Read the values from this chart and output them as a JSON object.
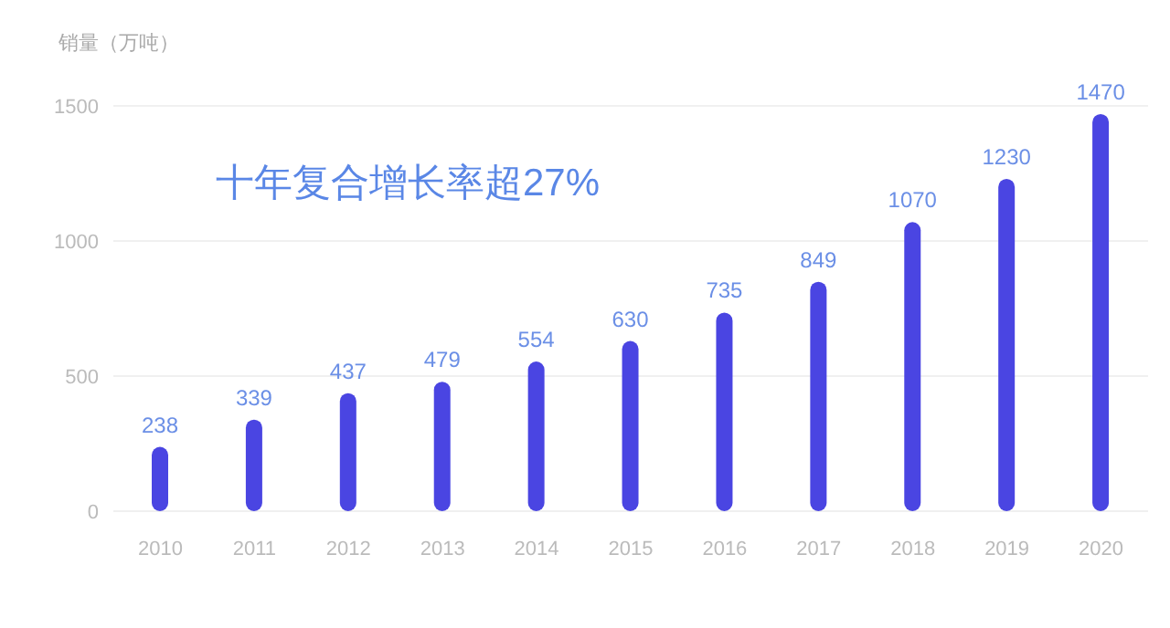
{
  "chart_data": {
    "type": "bar",
    "ylabel": "销量（万吨）",
    "categories": [
      "2010",
      "2011",
      "2012",
      "2013",
      "2014",
      "2015",
      "2016",
      "2017",
      "2018",
      "2019",
      "2020"
    ],
    "values": [
      238,
      339,
      437,
      479,
      554,
      630,
      735,
      849,
      1070,
      1230,
      1470
    ],
    "color": "#4a45e2",
    "ylim": [
      0,
      1500
    ],
    "yticks": [
      0,
      500,
      1000,
      1500
    ],
    "grid": "y",
    "data_labels": true,
    "annotations": [
      "十年复合增长率超27%"
    ]
  }
}
